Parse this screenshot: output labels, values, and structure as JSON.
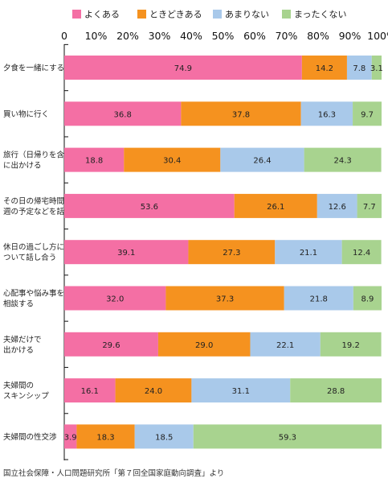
{
  "chart_data": {
    "type": "bar",
    "orientation": "horizontal",
    "stacked": true,
    "percent_axis": true,
    "x_ticks": [
      "0",
      "10%",
      "20%",
      "30%",
      "40%",
      "50%",
      "60%",
      "70%",
      "80%",
      "90%",
      "100%"
    ],
    "xlim": [
      0,
      100
    ],
    "legend_position": "top",
    "grid": false,
    "categories": [
      [
        "夕食を一緒にする"
      ],
      [
        "買い物に行く"
      ],
      [
        "旅行（日帰りを含む）",
        "に出かける"
      ],
      [
        "その日の帰宅時間や",
        "週の予定などを話す"
      ],
      [
        "休日の過ごし方に",
        "ついて話し合う"
      ],
      [
        "心配事や悩み事を",
        "相談する"
      ],
      [
        "夫婦だけで",
        "出かける"
      ],
      [
        "夫婦間の",
        "スキンシップ"
      ],
      [
        "夫婦間の性交渉"
      ]
    ],
    "series": [
      {
        "name": "よくある",
        "color": "#f46fa4",
        "values": [
          74.9,
          36.8,
          18.8,
          53.6,
          39.1,
          32.0,
          29.6,
          16.1,
          3.9
        ]
      },
      {
        "name": "ときどきある",
        "color": "#f5921f",
        "values": [
          14.2,
          37.8,
          30.4,
          26.1,
          27.3,
          37.3,
          29.0,
          24.0,
          18.3
        ]
      },
      {
        "name": "あまりない",
        "color": "#a9c9ea",
        "values": [
          7.8,
          16.3,
          26.4,
          12.6,
          21.1,
          21.8,
          22.1,
          31.1,
          18.5
        ]
      },
      {
        "name": "まったくない",
        "color": "#a8d38f",
        "values": [
          3.1,
          9.7,
          24.3,
          7.7,
          12.4,
          8.9,
          19.2,
          28.8,
          59.3
        ]
      }
    ]
  },
  "source": "国立社会保障・人口問題研究所「第７回全国家庭動向調査」より"
}
